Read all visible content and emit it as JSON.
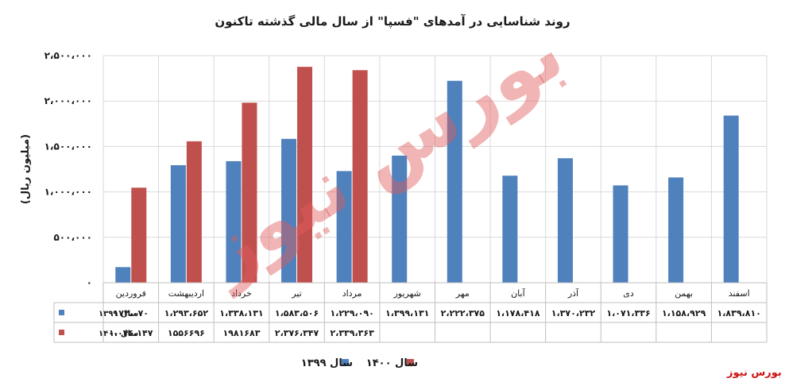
{
  "chart_data": {
    "type": "bar",
    "title": "روند شناسایی در آمدهای \"فسپا\" از سال مالی گذشته تاکنون",
    "ylabel": "(میلیون ریال)",
    "ylim": [
      0,
      2500000
    ],
    "yticks": [
      0,
      500000,
      1000000,
      1500000,
      2000000,
      2500000
    ],
    "ytick_labels": [
      "۰",
      "۵۰۰،۰۰۰",
      "۱،۰۰۰،۰۰۰",
      "۱،۵۰۰،۰۰۰",
      "۲،۰۰۰،۰۰۰",
      "۲،۵۰۰،۰۰۰"
    ],
    "categories": [
      "فروردین",
      "اردیبهشت",
      "خرداد",
      "تیر",
      "مرداد",
      "شهریور",
      "مهر",
      "آبان",
      "آذر",
      "دی",
      "بهمن",
      "اسفند"
    ],
    "series": [
      {
        "name": "سال ۱۳۹۹",
        "color": "#4f81bd",
        "values": [
          172070,
          1293652,
          1338131,
          1583506,
          1229090,
          1399131,
          2222375,
          1178418,
          1370232,
          1071336,
          1158929,
          1839810
        ],
        "labels": [
          "۱۷۲،۰۷۰",
          "۱،۲۹۳،۶۵۲",
          "۱،۳۳۸،۱۳۱",
          "۱،۵۸۳،۵۰۶",
          "۱،۲۲۹،۰۹۰",
          "۱،۳۹۹،۱۳۱",
          "۲،۲۲۲،۳۷۵",
          "۱،۱۷۸،۴۱۸",
          "۱،۳۷۰،۲۳۲",
          "۱،۰۷۱،۳۳۶",
          "۱،۱۵۸،۹۲۹",
          "۱،۸۳۹،۸۱۰"
        ]
      },
      {
        "name": "سال ۱۴۰۰",
        "color": "#c0504d",
        "values": [
          1046147,
          1556696,
          1981683,
          2376347,
          2339363,
          null,
          null,
          null,
          null,
          null,
          null,
          null
        ],
        "labels": [
          "۱،۰۴۶،۱۴۷",
          "۱۵۵۶۶۹۶",
          "۱۹۸۱۶۸۳",
          "۲،۳۷۶،۳۴۷",
          "۲،۳۳۹،۳۶۳",
          "",
          "",
          "",
          "",
          "",
          "",
          ""
        ]
      }
    ],
    "legend_position": "bottom",
    "grid": true,
    "data_table": true
  },
  "watermark_text": "بورس نیوز",
  "credit_text": "بورس نیوز",
  "colors": {
    "grid": "#d9d9d9",
    "axis": "#bfbfbf",
    "text": "#1a1a1a",
    "watermark": "#e05a5a",
    "credit": "#cc1111"
  }
}
